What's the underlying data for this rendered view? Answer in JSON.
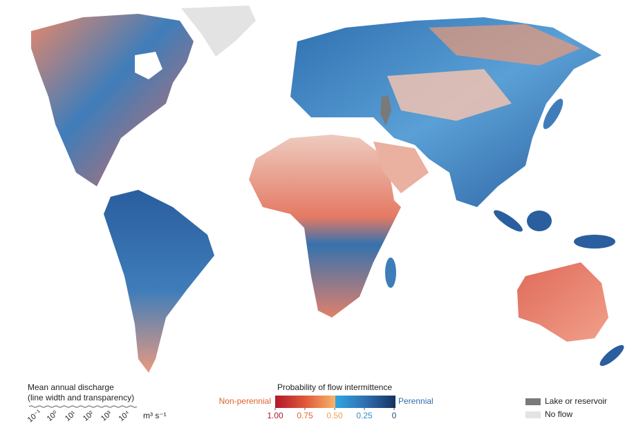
{
  "discharge_legend": {
    "title": "Mean annual discharge",
    "subtitle": "(line width and transparency)",
    "ticks": [
      "10⁻¹",
      "10⁰",
      "10¹",
      "10²",
      "10³",
      "10⁴"
    ],
    "unit": "m³ s⁻¹"
  },
  "intermittence_legend": {
    "title": "Probability of flow intermittence",
    "left_label": "Non-perennial",
    "right_label": "Perennial",
    "ticks": [
      {
        "value": 1,
        "label": "1.00"
      },
      {
        "value": 0.75,
        "label": "0.75"
      },
      {
        "value": 0.5,
        "label": "0.50"
      },
      {
        "value": 0.25,
        "label": "0.25"
      },
      0
    ]
  },
  "other_legend": {
    "lake": "Lake or reservoir",
    "no_flow": "No flow"
  }
}
